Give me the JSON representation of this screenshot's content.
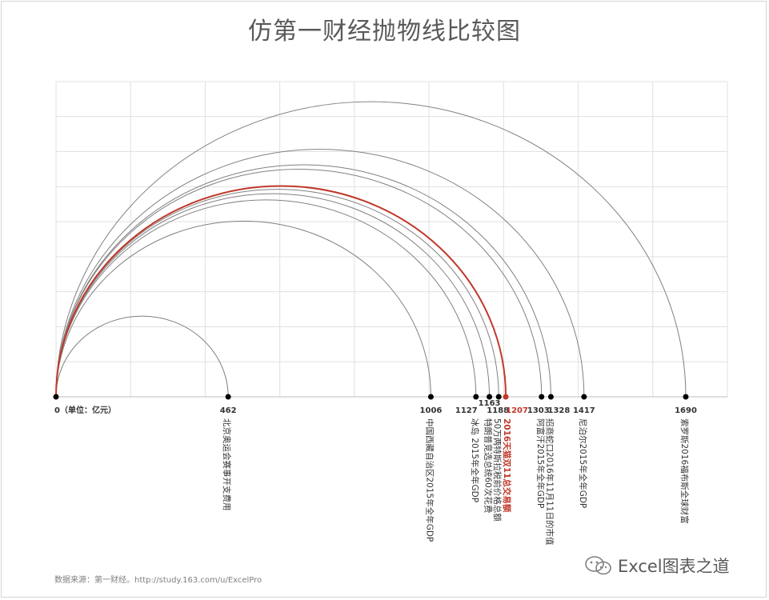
{
  "chart_data": {
    "type": "arc",
    "title": "仿第一财经抛物线比较图",
    "origin_label": "0（单位：亿元）",
    "highlight_color": "#c0392b",
    "arc_color": "#808080",
    "grid_color": "#e0e0e0",
    "items": [
      {
        "value": 462,
        "label": "北京奥运会赛事开支费用"
      },
      {
        "value": 1006,
        "label": "中国西藏自治区2015年全年GDP"
      },
      {
        "value": 1127,
        "label": "冰岛 2015年全年GDP"
      },
      {
        "value": 1163,
        "label": "特朗普竞选总统60次花费"
      },
      {
        "value": 1188,
        "label": "50万两特斯拉税前价格总额"
      },
      {
        "value": 1207,
        "label": "2016天猫双11总交易额",
        "highlight": true
      },
      {
        "value": 1303,
        "label": "阿富汗2015年全年GDP"
      },
      {
        "value": 1328,
        "label": "招商蛇口2016年11月11日的市值"
      },
      {
        "value": 1417,
        "label": "尼泊尔2015年全年GDP"
      },
      {
        "value": 1690,
        "label": "索罗斯2016福布斯全球财富"
      }
    ]
  },
  "source": "数据来源：第一财经。http://study.163.com/u/ExcelPro",
  "watermark": "Excel图表之道",
  "watermark_icon": "wechat-icon"
}
